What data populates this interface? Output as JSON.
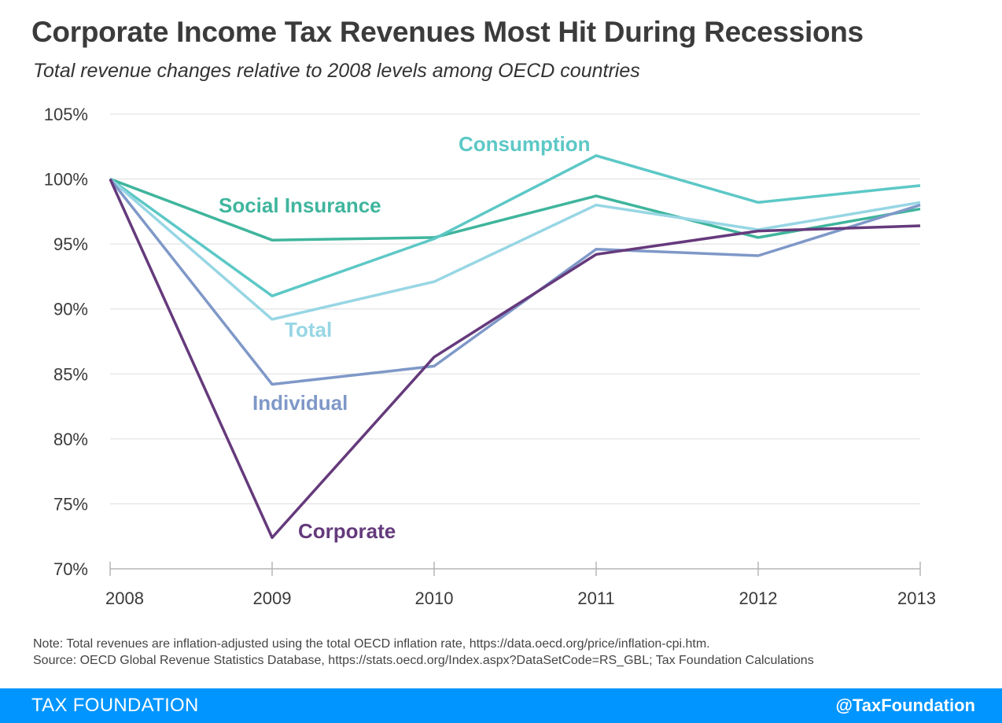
{
  "header": {
    "title": "Corporate Income Tax Revenues Most Hit During Recessions",
    "subtitle": "Total revenue changes relative to 2008 levels among OECD countries"
  },
  "chart_data": {
    "type": "line",
    "x": [
      "2008",
      "2009",
      "2010",
      "2011",
      "2012",
      "2013"
    ],
    "ylim": [
      70,
      105
    ],
    "yticks": [
      "70%",
      "75%",
      "80%",
      "85%",
      "90%",
      "95%",
      "100%",
      "105%"
    ],
    "grid": true,
    "series": [
      {
        "name": "Social Insurance",
        "color": "#3fb59d",
        "values": [
          100,
          95.3,
          95.5,
          98.7,
          95.5,
          97.7
        ]
      },
      {
        "name": "Consumption",
        "color": "#5cc8c6",
        "values": [
          100,
          91.0,
          95.4,
          101.8,
          98.2,
          99.5
        ]
      },
      {
        "name": "Total",
        "color": "#97d6e4",
        "values": [
          100,
          89.2,
          92.1,
          98.0,
          96.1,
          98.2
        ]
      },
      {
        "name": "Individual",
        "color": "#7f98c8",
        "values": [
          100,
          84.2,
          85.6,
          94.6,
          94.1,
          98.0
        ]
      },
      {
        "name": "Corporate",
        "color": "#653a7c",
        "values": [
          100,
          72.4,
          86.3,
          94.2,
          96.0,
          96.4
        ]
      }
    ]
  },
  "notes": {
    "note": "Note: Total revenues are inflation-adjusted using the total OECD inflation rate, https://data.oecd.org/price/inflation-cpi.htm.",
    "source": "Source: OECD Global Revenue Statistics Database, https://stats.oecd.org/Index.aspx?DataSetCode=RS_GBL; Tax Foundation Calculations"
  },
  "footer": {
    "brand": "TAX FOUNDATION",
    "handle": "@TaxFoundation"
  }
}
